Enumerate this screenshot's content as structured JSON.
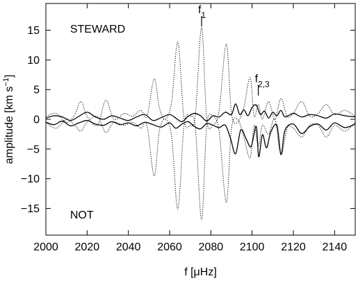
{
  "chart_data": {
    "type": "line",
    "xlabel": "f [μHz]",
    "ylabel_main": "amplitude [km s",
    "ylabel_sup": "−1",
    "ylabel_close": "]",
    "xlim": [
      2000,
      2150
    ],
    "ylim": [
      -19.5,
      19.5
    ],
    "xticks": [
      2000,
      2020,
      2040,
      2060,
      2080,
      2100,
      2120,
      2140
    ],
    "xtick_labels": [
      "2000",
      "2020",
      "2040",
      "2060",
      "2080",
      "2100",
      "2120",
      "2140"
    ],
    "yticks": [
      -15,
      -10,
      -5,
      0,
      5,
      10,
      15
    ],
    "ytick_labels": [
      "−15",
      "−10",
      "−5",
      "0",
      "5",
      "10",
      "15"
    ],
    "grid": false,
    "legend": "none",
    "annotations": [
      {
        "text": "STEWARD",
        "x": 2005,
        "y": 15.3
      },
      {
        "text": "NOT",
        "x": 2005,
        "y": -16.0
      }
    ],
    "markers": [
      {
        "label": "f",
        "sub": "1",
        "x": 2075.5,
        "y0": 15.6,
        "y1": 17.4
      },
      {
        "label": "f",
        "sub": "2,3",
        "x": 2103.0,
        "y0": 4.0,
        "y1": 5.8
      }
    ],
    "series": [
      {
        "style": "dotted",
        "x": [
          2000,
          2005,
          2010,
          2014,
          2017,
          2020,
          2025,
          2029,
          2033,
          2038,
          2042,
          2046,
          2049,
          2052.5,
          2055,
          2058,
          2061,
          2064,
          2067,
          2070,
          2072.5,
          2075.5,
          2078,
          2081,
          2084,
          2087.5,
          2090,
          2093,
          2096,
          2099,
          2101,
          2103,
          2105,
          2108,
          2111,
          2114,
          2117,
          2120,
          2124,
          2128,
          2132,
          2136,
          2140,
          2145,
          2150
        ],
        "values": [
          0.5,
          1.0,
          -0.5,
          0.8,
          3.0,
          0.5,
          -1.0,
          3.2,
          0.0,
          1.0,
          0.5,
          1.5,
          0.5,
          6.8,
          2.0,
          0.0,
          3.0,
          13.0,
          0.0,
          -1.0,
          0.8,
          15.4,
          0.0,
          -1.0,
          1.5,
          12.7,
          1.0,
          -0.5,
          2.0,
          7.0,
          0.5,
          2.5,
          0.0,
          3.0,
          0.0,
          3.5,
          0.5,
          1.0,
          3.0,
          0.5,
          1.0,
          2.5,
          0.8,
          1.5,
          0.5
        ]
      },
      {
        "style": "dotted",
        "x": [
          2000,
          2005,
          2010,
          2014,
          2017,
          2020,
          2025,
          2029,
          2033,
          2038,
          2042,
          2046,
          2049,
          2052.5,
          2055,
          2058,
          2061,
          2064,
          2067,
          2070,
          2072.5,
          2075.5,
          2078,
          2081,
          2084,
          2087.5,
          2090,
          2093,
          2096,
          2099,
          2101,
          2103,
          2105,
          2108,
          2111,
          2114,
          2117,
          2120,
          2124,
          2128,
          2132,
          2136,
          2140,
          2145,
          2150
        ],
        "values": [
          -0.5,
          -1.5,
          0.0,
          -1.0,
          -2.0,
          -0.5,
          0.5,
          -2.2,
          -0.5,
          -1.0,
          -0.5,
          -1.5,
          -1.0,
          -9.5,
          -2.0,
          0.0,
          -3.0,
          -15.1,
          -1.0,
          0.5,
          -1.5,
          -16.9,
          -1.0,
          0.5,
          -2.0,
          -14.0,
          -1.5,
          0.0,
          -3.0,
          -6.5,
          -1.0,
          -4.5,
          -1.0,
          -2.5,
          0.0,
          -6.0,
          -1.5,
          -1.5,
          -3.0,
          -1.0,
          -1.0,
          -3.0,
          -1.0,
          -2.0,
          -0.5
        ]
      },
      {
        "style": "solid",
        "x": [
          2000,
          2004,
          2008,
          2012,
          2016,
          2020,
          2024,
          2028,
          2032,
          2036,
          2040,
          2044,
          2048,
          2052,
          2056,
          2060,
          2063,
          2066,
          2069,
          2072,
          2075,
          2078,
          2081,
          2084,
          2087,
          2090,
          2092,
          2094,
          2096,
          2098,
          2100,
          2102,
          2104,
          2106,
          2108,
          2110,
          2112,
          2114,
          2116,
          2120,
          2124,
          2128,
          2132,
          2136,
          2140,
          2145,
          2150
        ],
        "values": [
          0.2,
          0.6,
          0.4,
          -0.2,
          0.5,
          1.2,
          0.4,
          0.0,
          0.6,
          0.2,
          -0.2,
          0.4,
          0.8,
          -0.2,
          0.3,
          0.8,
          0.2,
          -0.4,
          0.5,
          1.0,
          0.6,
          -0.3,
          0.6,
          0.4,
          1.2,
          0.8,
          2.6,
          0.8,
          1.6,
          0.6,
          2.0,
          2.4,
          0.8,
          1.4,
          0.2,
          1.2,
          0.6,
          1.5,
          0.4,
          1.0,
          0.4,
          0.8,
          0.6,
          0.2,
          0.9,
          0.6,
          0.4
        ]
      },
      {
        "style": "solid",
        "x": [
          2000,
          2004,
          2008,
          2012,
          2016,
          2020,
          2024,
          2028,
          2032,
          2036,
          2040,
          2044,
          2048,
          2052,
          2056,
          2060,
          2063,
          2066,
          2069,
          2072,
          2075,
          2078,
          2081,
          2084,
          2087,
          2089.5,
          2092,
          2094.5,
          2097,
          2099.5,
          2102,
          2103.2,
          2105,
          2107,
          2109,
          2112,
          2114,
          2116,
          2120,
          2124,
          2128,
          2132,
          2136,
          2140,
          2145,
          2150
        ],
        "values": [
          -0.5,
          -0.9,
          -0.3,
          -1.1,
          -0.6,
          -0.2,
          -0.8,
          -1.0,
          -0.4,
          -0.9,
          -0.6,
          -1.1,
          -0.5,
          -0.9,
          -1.3,
          -0.6,
          -1.5,
          -0.8,
          -0.4,
          -1.2,
          -1.6,
          -0.7,
          -1.0,
          -1.4,
          -1.0,
          -3.2,
          -5.8,
          -1.8,
          -3.2,
          -4.6,
          -1.2,
          -6.3,
          -2.6,
          -4.8,
          -2.2,
          -1.0,
          -5.9,
          -1.8,
          -0.8,
          -2.4,
          -1.2,
          -0.8,
          -1.8,
          -0.6,
          -1.4,
          -0.8
        ]
      }
    ]
  }
}
